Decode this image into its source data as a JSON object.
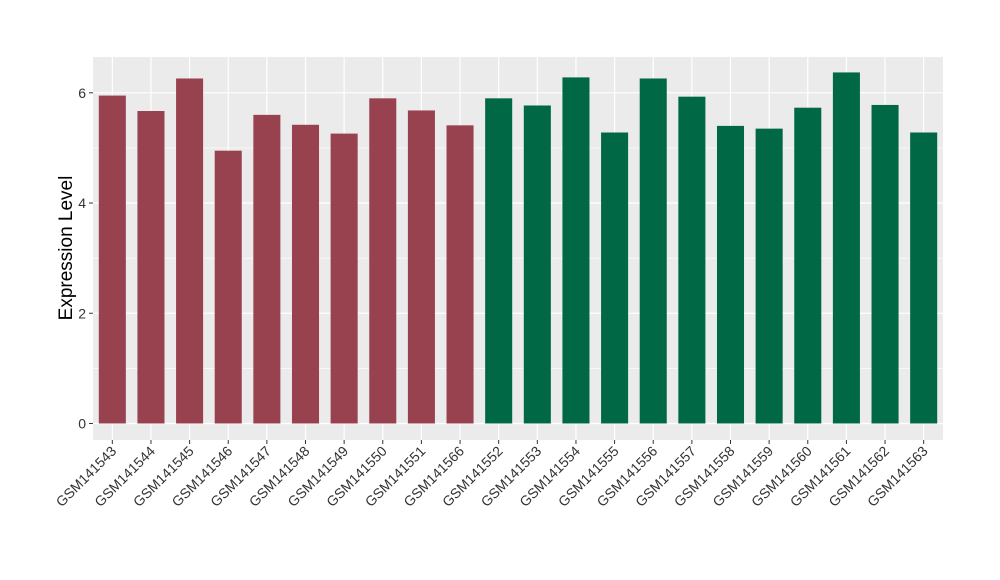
{
  "chart_data": {
    "type": "bar",
    "title": "",
    "xlabel": "",
    "ylabel": "Expression Level",
    "ylim": [
      -0.3,
      6.65
    ],
    "yticks": [
      0,
      2,
      4,
      6
    ],
    "grid": true,
    "legend": "none",
    "categories": [
      "GSM141543",
      "GSM141544",
      "GSM141545",
      "GSM141546",
      "GSM141547",
      "GSM141548",
      "GSM141549",
      "GSM141550",
      "GSM141551",
      "GSM141566",
      "GSM141552",
      "GSM141553",
      "GSM141554",
      "GSM141555",
      "GSM141556",
      "GSM141557",
      "GSM141558",
      "GSM141559",
      "GSM141560",
      "GSM141561",
      "GSM141562",
      "GSM141563"
    ],
    "values": [
      5.95,
      5.67,
      6.26,
      4.95,
      5.6,
      5.42,
      5.26,
      5.9,
      5.68,
      5.41,
      5.9,
      5.77,
      6.28,
      5.28,
      6.26,
      5.93,
      5.4,
      5.35,
      5.73,
      6.37,
      5.78,
      5.28
    ],
    "groups": [
      0,
      0,
      0,
      0,
      0,
      0,
      0,
      0,
      0,
      0,
      1,
      1,
      1,
      1,
      1,
      1,
      1,
      1,
      1,
      1,
      1,
      1
    ],
    "colors": {
      "group_0": "#99424f",
      "group_1": "#006845",
      "panel_bg": "#ebebeb",
      "grid": "#ffffff"
    }
  }
}
